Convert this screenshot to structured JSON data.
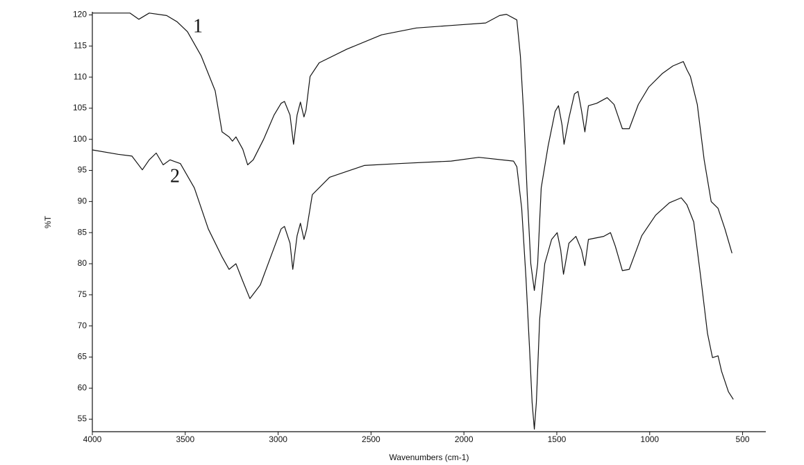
{
  "chart_data": {
    "type": "line",
    "x_label": "Wavenumbers (cm-1)",
    "y_label": "%T",
    "xlim": [
      4000,
      375
    ],
    "ylim": [
      53,
      120.5
    ],
    "xticks": [
      4000,
      3500,
      3000,
      2500,
      2000,
      1500,
      1000,
      500
    ],
    "yticks": [
      55,
      60,
      65,
      70,
      75,
      80,
      85,
      90,
      95,
      100,
      105,
      110,
      115,
      120
    ],
    "series": [
      {
        "name": "1",
        "color": "#111111",
        "x": [
          4000,
          3798,
          3750,
          3694,
          3600,
          3544,
          3488,
          3414,
          3339,
          3302,
          3264,
          3246,
          3227,
          3190,
          3164,
          3134,
          3078,
          3022,
          2984,
          2966,
          2936,
          2917,
          2898,
          2880,
          2861,
          2850,
          2828,
          2779,
          2630,
          2443,
          2256,
          2069,
          1883,
          1808,
          1771,
          1715,
          1696,
          1677,
          1659,
          1640,
          1621,
          1603,
          1584,
          1547,
          1509,
          1491,
          1472,
          1461,
          1435,
          1405,
          1386,
          1367,
          1349,
          1330,
          1285,
          1229,
          1192,
          1147,
          1110,
          1061,
          1005,
          931,
          875,
          819,
          800,
          781,
          744,
          707,
          669,
          632,
          595,
          557
        ],
        "values": [
          120.3,
          120.3,
          119.3,
          120.3,
          119.9,
          118.9,
          117.3,
          113.4,
          107.8,
          101.2,
          100.4,
          99.7,
          100.4,
          98.4,
          95.9,
          96.7,
          100,
          103.9,
          105.8,
          106.1,
          103.9,
          99.2,
          103.9,
          106,
          103.6,
          104.7,
          110.1,
          112.3,
          114.5,
          116.8,
          117.9,
          118.3,
          118.7,
          119.9,
          120.1,
          119.2,
          113.4,
          103.4,
          91.1,
          80,
          75.7,
          80,
          92.2,
          98.9,
          104.5,
          105.4,
          102.3,
          99.2,
          103.4,
          107.3,
          107.7,
          104.6,
          101.2,
          105.4,
          105.8,
          106.7,
          105.6,
          101.7,
          101.7,
          105.6,
          108.4,
          110.6,
          111.8,
          112.5,
          111.2,
          110.1,
          105.6,
          96.7,
          90,
          88.9,
          85.6,
          81.7
        ]
      },
      {
        "name": "2",
        "color": "#111111",
        "x": [
          4000,
          3862,
          3787,
          3731,
          3694,
          3656,
          3619,
          3582,
          3526,
          3451,
          3376,
          3302,
          3264,
          3227,
          3190,
          3152,
          3096,
          3040,
          2984,
          2966,
          2936,
          2921,
          2898,
          2880,
          2861,
          2846,
          2816,
          2723,
          2536,
          2350,
          2069,
          1920,
          1733,
          1715,
          1689,
          1666,
          1647,
          1633,
          1621,
          1610,
          1592,
          1565,
          1528,
          1498,
          1479,
          1464,
          1435,
          1397,
          1367,
          1349,
          1330,
          1248,
          1211,
          1185,
          1147,
          1110,
          1043,
          968,
          894,
          830,
          800,
          763,
          725,
          689,
          662,
          632,
          613,
          576,
          550
        ],
        "values": [
          98.3,
          97.6,
          97.3,
          95.1,
          96.7,
          97.8,
          95.9,
          96.7,
          96.1,
          92.2,
          85.6,
          81.1,
          79.1,
          80,
          77.2,
          74.4,
          76.6,
          81.1,
          85.6,
          86,
          83.3,
          79.1,
          84.5,
          86.5,
          83.9,
          85.6,
          91.1,
          93.9,
          95.8,
          96.1,
          96.5,
          97.1,
          96.5,
          95.6,
          88.9,
          77.8,
          66.6,
          57.7,
          53.4,
          57.7,
          71.1,
          80,
          83.9,
          85,
          82.2,
          78.3,
          83.3,
          84.4,
          82.2,
          79.7,
          83.9,
          84.4,
          85,
          82.8,
          78.9,
          79.1,
          84.5,
          87.8,
          89.8,
          90.6,
          89.5,
          86.7,
          77.8,
          68.8,
          64.9,
          65.2,
          62.7,
          59.4,
          58.2
        ]
      }
    ]
  }
}
